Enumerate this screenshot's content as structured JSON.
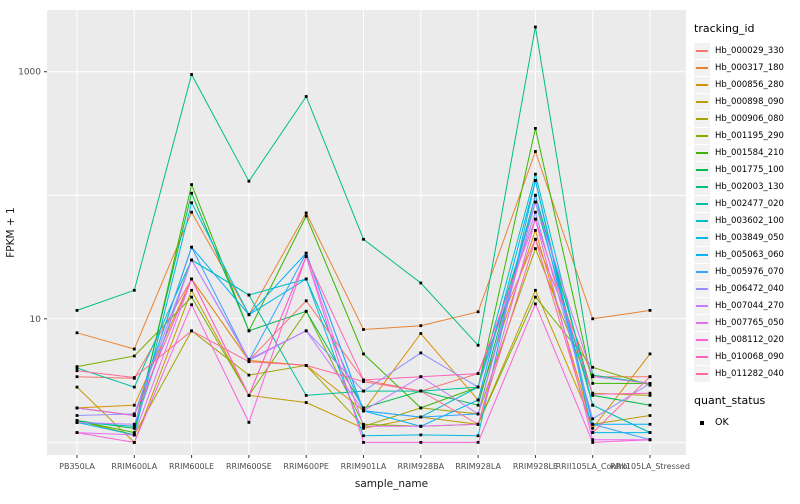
{
  "chart_data": {
    "type": "line",
    "title": "",
    "xlabel": "sample_name",
    "ylabel": "FPKM + 1",
    "y_scale": "log10",
    "ylim": [
      0.79,
      3160
    ],
    "y_axis_ticks": [
      {
        "value": 10,
        "label": "10"
      },
      {
        "value": 1000,
        "label": "1000"
      }
    ],
    "y_gridline_values": [
      1,
      10,
      100,
      1000
    ],
    "grid_on": true,
    "legend_position": "right",
    "panel_bg": "#EBEBEB",
    "grid_color": "#FFFFFF",
    "tick_text_color": "#4D4D4D",
    "axis_title_color": "#1a1a1a",
    "point_color": "#000000",
    "point_shape": "square",
    "categories": [
      "PB350LA",
      "RRIM600LA",
      "RRIM600LE",
      "RRIM600SE",
      "RRIM600PE",
      "RRIM901LA",
      "RRIM928BA",
      "RRIM928LA",
      "RRIM928LE",
      "RRII105LA_Control",
      "RRII105LA_Stressed"
    ],
    "series": [
      {
        "name": "Hb_000029_330",
        "color": "#F8766D",
        "values": [
          3.4,
          3.3,
          21,
          4.6,
          14,
          3.2,
          2.6,
          3.6,
          44,
          3.4,
          3.4
        ]
      },
      {
        "name": "Hb_000317_180",
        "color": "#EA8331",
        "values": [
          7.7,
          5.7,
          73,
          10.8,
          72,
          8.2,
          8.8,
          11.4,
          226,
          10.0,
          11.7
        ]
      },
      {
        "name": "Hb_000856_280",
        "color": "#D89000",
        "values": [
          1.9,
          2.0,
          21,
          4.6,
          4.2,
          1.8,
          7.6,
          2.2,
          52,
          1.3,
          5.2
        ]
      },
      {
        "name": "Hb_000898_090",
        "color": "#C09B00",
        "values": [
          2.8,
          1.0,
          17,
          2.4,
          2.1,
          1.3,
          1.6,
          1.4,
          17,
          1.4,
          1.65
        ]
      },
      {
        "name": "Hb_000906_080",
        "color": "#A3A500",
        "values": [
          1.5,
          1.15,
          8.0,
          3.5,
          4.2,
          1.35,
          1.9,
          1.7,
          37,
          2.5,
          2.4
        ]
      },
      {
        "name": "Hb_001195_290",
        "color": "#7CAE00",
        "values": [
          4.1,
          5.0,
          15,
          2.4,
          11.5,
          1.4,
          1.35,
          1.4,
          15,
          4.05,
          2.9
        ]
      },
      {
        "name": "Hb_001584_210",
        "color": "#39B600",
        "values": [
          1.5,
          1.2,
          122,
          8.0,
          68,
          5.2,
          1.9,
          2.8,
          348,
          3.0,
          3.0
        ]
      },
      {
        "name": "Hb_001775_100",
        "color": "#00BB4E",
        "values": [
          1.5,
          1.3,
          104,
          8.0,
          11.5,
          1.9,
          2.6,
          2.0,
          100,
          2.4,
          2.0
        ]
      },
      {
        "name": "Hb_002003_130",
        "color": "#00BF7D",
        "values": [
          11.7,
          17,
          950,
          130,
          630,
          44,
          19.5,
          6.1,
          2300,
          3.5,
          3.0
        ]
      },
      {
        "name": "Hb_002477_020",
        "color": "#00C1A3",
        "values": [
          4.0,
          2.8,
          30,
          15.6,
          2.4,
          2.6,
          2.6,
          2.8,
          88,
          2.0,
          1.2
        ]
      },
      {
        "name": "Hb_003602_100",
        "color": "#00BFC4",
        "values": [
          1.45,
          1.35,
          30,
          15.6,
          21,
          1.8,
          1.6,
          2.8,
          148,
          2.0,
          1.2
        ]
      },
      {
        "name": "Hb_003849_050",
        "color": "#00BAE0",
        "values": [
          1.45,
          1.15,
          87,
          10.8,
          21,
          1.13,
          1.15,
          1.13,
          132,
          1.2,
          1.2
        ]
      },
      {
        "name": "Hb_005063_060",
        "color": "#00B0F6",
        "values": [
          1.9,
          1.65,
          38,
          10.8,
          34,
          1.8,
          1.35,
          2.2,
          132,
          1.4,
          1.4
        ]
      },
      {
        "name": "Hb_005976_070",
        "color": "#35A2FF",
        "values": [
          1.9,
          1.65,
          38,
          4.6,
          34,
          1.8,
          1.6,
          1.7,
          100,
          1.4,
          1.05
        ]
      },
      {
        "name": "Hb_006472_040",
        "color": "#9590FF",
        "values": [
          1.65,
          1.7,
          30,
          4.6,
          8.0,
          2.6,
          5.3,
          2.8,
          73,
          1.55,
          3.0
        ]
      },
      {
        "name": "Hb_007044_270",
        "color": "#C77CFF",
        "values": [
          1.45,
          1.4,
          30,
          4.7,
          8.0,
          1.8,
          3.4,
          1.7,
          88,
          3.4,
          3.0
        ]
      },
      {
        "name": "Hb_007765_050",
        "color": "#E76BF3",
        "values": [
          1.2,
          1.15,
          21,
          2.4,
          32,
          1.35,
          1.35,
          1.4,
          64,
          1.05,
          1.05
        ]
      },
      {
        "name": "Hb_008112_020",
        "color": "#FA62DB",
        "values": [
          1.2,
          1.0,
          13,
          1.45,
          32,
          1.0,
          1.0,
          1.0,
          13.2,
          1.0,
          1.05
        ]
      },
      {
        "name": "Hb_010068_090",
        "color": "#FF62BC",
        "values": [
          1.9,
          1.65,
          21,
          2.4,
          32,
          3.2,
          3.4,
          3.6,
          64,
          2.45,
          2.5
        ]
      },
      {
        "name": "Hb_011282_040",
        "color": "#FF6A98",
        "values": [
          3.8,
          3.35,
          8.0,
          4.5,
          4.2,
          3.1,
          2.6,
          1.4,
          44,
          1.2,
          3.4
        ]
      }
    ]
  },
  "legend": {
    "tracking_title": "tracking_id",
    "quant_title": "quant_status",
    "quant_items": [
      {
        "label": "OK"
      }
    ]
  }
}
